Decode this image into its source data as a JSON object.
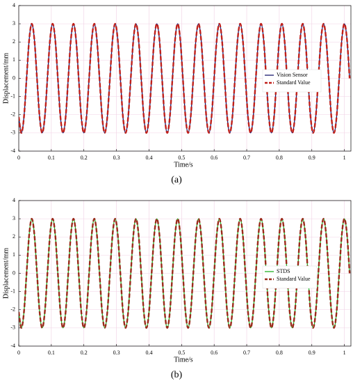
{
  "chart_data": [
    {
      "type": "line",
      "caption": "(a)",
      "xlabel": "Time/s",
      "ylabel": "Displacement/mm",
      "xlim": [
        0,
        1.02
      ],
      "xticks": [
        0,
        0.1,
        0.2,
        0.3,
        0.4,
        0.5,
        0.6,
        0.7,
        0.8,
        0.9,
        1
      ],
      "ylim": [
        -4,
        4
      ],
      "yticks": [
        -4,
        -3,
        -2,
        -1,
        0,
        1,
        2,
        3,
        4
      ],
      "grid": true,
      "x": [
        0,
        0.008,
        0.016,
        0.024,
        0.032,
        0.04,
        0.048,
        0.056,
        0.064,
        0.072,
        0.08,
        0.088,
        0.096,
        0.104,
        0.112,
        0.12,
        0.128,
        0.136,
        0.144,
        0.152,
        0.16,
        0.168,
        0.176,
        0.184,
        0.192,
        0.2,
        0.208,
        0.216,
        0.224,
        0.232,
        0.24,
        0.248,
        0.256,
        0.264,
        0.272,
        0.28,
        0.288,
        0.296,
        0.304,
        0.312,
        0.32,
        0.328,
        0.336,
        0.344,
        0.352,
        0.36,
        0.368,
        0.376,
        0.384,
        0.392,
        0.4,
        0.408,
        0.416,
        0.424,
        0.432,
        0.44,
        0.448,
        0.456,
        0.464,
        0.472,
        0.48,
        0.488,
        0.496,
        0.504,
        0.512,
        0.52,
        0.528,
        0.536,
        0.544,
        0.552,
        0.56,
        0.568,
        0.576,
        0.584,
        0.592,
        0.6,
        0.608,
        0.616,
        0.624,
        0.632,
        0.64,
        0.648,
        0.656,
        0.664,
        0.672,
        0.68,
        0.688,
        0.696,
        0.704,
        0.712,
        0.72,
        0.728,
        0.736,
        0.744,
        0.752,
        0.76,
        0.768,
        0.776,
        0.784,
        0.792,
        0.8,
        0.808,
        0.816,
        0.824,
        0.832,
        0.84,
        0.848,
        0.856,
        0.864,
        0.872,
        0.88,
        0.888,
        0.896,
        0.904,
        0.912,
        0.92,
        0.928,
        0.936,
        0.944,
        0.952,
        0.96,
        0.968,
        0.976,
        0.984,
        0.992,
        1,
        1.008,
        1.016
      ],
      "series": [
        {
          "name": "Vision Sensor",
          "color": "#1a1a6e",
          "line_style": "solid",
          "values": [
            -2.12,
            -3,
            -2.12,
            0,
            2.12,
            3,
            2.12,
            0,
            -2.12,
            -3,
            -2.12,
            0,
            2.12,
            3,
            2.12,
            0,
            -2.12,
            -3,
            -2.12,
            0,
            2.12,
            3,
            2.12,
            0,
            -2.12,
            -3,
            -2.12,
            0,
            2.12,
            3,
            2.12,
            0,
            -2.12,
            -3,
            -2.12,
            0,
            2.12,
            3,
            2.12,
            0,
            -2.12,
            -3,
            -2.12,
            0,
            2.12,
            3,
            2.12,
            0,
            -2.12,
            -3,
            -2.12,
            0,
            2.12,
            3,
            2.12,
            0,
            -2.12,
            -3,
            -2.12,
            0,
            2.12,
            3,
            2.12,
            0,
            -2.12,
            -3,
            -2.12,
            0,
            2.12,
            3,
            2.12,
            0,
            -2.12,
            -3,
            -2.12,
            0,
            2.12,
            3,
            2.12,
            0,
            -2.12,
            -3,
            -2.12,
            0,
            2.12,
            3,
            2.12,
            0,
            -2.12,
            -3,
            -2.12,
            0,
            2.12,
            3,
            2.12,
            0,
            -2.12,
            -3,
            -2.12,
            0,
            2.12,
            3,
            2.12,
            0,
            -2.12,
            -3,
            -2.12,
            0,
            2.12,
            3,
            2.12,
            0,
            -2.12,
            -3,
            -2.12,
            0,
            2.12,
            3,
            2.12,
            0,
            -2.12,
            -3,
            -2.12,
            0,
            2.12,
            3,
            2.12,
            0
          ]
        },
        {
          "name": "Standard Value",
          "color": "#c0201a",
          "line_style": "dashed",
          "values": [
            -2.12,
            -3,
            -2.12,
            0,
            2.12,
            3,
            2.12,
            0,
            -2.12,
            -3,
            -2.12,
            0,
            2.12,
            3,
            2.12,
            0,
            -2.12,
            -3,
            -2.12,
            0,
            2.12,
            3,
            2.12,
            0,
            -2.12,
            -3,
            -2.12,
            0,
            2.12,
            3,
            2.12,
            0,
            -2.12,
            -3,
            -2.12,
            0,
            2.12,
            3,
            2.12,
            0,
            -2.12,
            -3,
            -2.12,
            0,
            2.12,
            3,
            2.12,
            0,
            -2.12,
            -3,
            -2.12,
            0,
            2.12,
            3,
            2.12,
            0,
            -2.12,
            -3,
            -2.12,
            0,
            2.12,
            3,
            2.12,
            0,
            -2.12,
            -3,
            -2.12,
            0,
            2.12,
            3,
            2.12,
            0,
            -2.12,
            -3,
            -2.12,
            0,
            2.12,
            3,
            2.12,
            0,
            -2.12,
            -3,
            -2.12,
            0,
            2.12,
            3,
            2.12,
            0,
            -2.12,
            -3,
            -2.12,
            0,
            2.12,
            3,
            2.12,
            0,
            -2.12,
            -3,
            -2.12,
            0,
            2.12,
            3,
            2.12,
            0,
            -2.12,
            -3,
            -2.12,
            0,
            2.12,
            3,
            2.12,
            0,
            -2.12,
            -3,
            -2.12,
            0,
            2.12,
            3,
            2.12,
            0,
            -2.12,
            -3,
            -2.12,
            0,
            2.12,
            3,
            2.12,
            0
          ]
        }
      ]
    },
    {
      "type": "line",
      "caption": "(b)",
      "xlabel": "Time/s",
      "ylabel": "Displacement/mm",
      "xlim": [
        0,
        1.02
      ],
      "xticks": [
        0,
        0.1,
        0.2,
        0.3,
        0.4,
        0.5,
        0.6,
        0.7,
        0.8,
        0.9,
        1
      ],
      "ylim": [
        -4,
        4
      ],
      "yticks": [
        -4,
        -3,
        -2,
        -1,
        0,
        1,
        2,
        3,
        4
      ],
      "grid": true,
      "x": [
        0,
        0.008,
        0.016,
        0.024,
        0.032,
        0.04,
        0.048,
        0.056,
        0.064,
        0.072,
        0.08,
        0.088,
        0.096,
        0.104,
        0.112,
        0.12,
        0.128,
        0.136,
        0.144,
        0.152,
        0.16,
        0.168,
        0.176,
        0.184,
        0.192,
        0.2,
        0.208,
        0.216,
        0.224,
        0.232,
        0.24,
        0.248,
        0.256,
        0.264,
        0.272,
        0.28,
        0.288,
        0.296,
        0.304,
        0.312,
        0.32,
        0.328,
        0.336,
        0.344,
        0.352,
        0.36,
        0.368,
        0.376,
        0.384,
        0.392,
        0.4,
        0.408,
        0.416,
        0.424,
        0.432,
        0.44,
        0.448,
        0.456,
        0.464,
        0.472,
        0.48,
        0.488,
        0.496,
        0.504,
        0.512,
        0.52,
        0.528,
        0.536,
        0.544,
        0.552,
        0.56,
        0.568,
        0.576,
        0.584,
        0.592,
        0.6,
        0.608,
        0.616,
        0.624,
        0.632,
        0.64,
        0.648,
        0.656,
        0.664,
        0.672,
        0.68,
        0.688,
        0.696,
        0.704,
        0.712,
        0.72,
        0.728,
        0.736,
        0.744,
        0.752,
        0.76,
        0.768,
        0.776,
        0.784,
        0.792,
        0.8,
        0.808,
        0.816,
        0.824,
        0.832,
        0.84,
        0.848,
        0.856,
        0.864,
        0.872,
        0.88,
        0.888,
        0.896,
        0.904,
        0.912,
        0.92,
        0.928,
        0.936,
        0.944,
        0.952,
        0.96,
        0.968,
        0.976,
        0.984,
        0.992,
        1,
        1.008,
        1.016
      ],
      "series": [
        {
          "name": "STDS",
          "color": "#22b022",
          "line_style": "solid",
          "values": [
            -2.12,
            -3,
            -2.12,
            0,
            2.12,
            3,
            2.12,
            0,
            -2.12,
            -3,
            -2.12,
            0,
            2.12,
            3,
            2.12,
            0,
            -2.12,
            -3,
            -2.12,
            0,
            2.12,
            3,
            2.12,
            0,
            -2.12,
            -3,
            -2.12,
            0,
            2.12,
            3,
            2.12,
            0,
            -2.12,
            -3,
            -2.12,
            0,
            2.12,
            3,
            2.12,
            0,
            -2.12,
            -3,
            -2.12,
            0,
            2.12,
            3,
            2.12,
            0,
            -2.12,
            -3,
            -2.12,
            0,
            2.12,
            3,
            2.12,
            0,
            -2.12,
            -3,
            -2.12,
            0,
            2.12,
            3,
            2.12,
            0,
            -2.12,
            -3,
            -2.12,
            0,
            2.12,
            3,
            2.12,
            0,
            -2.12,
            -3,
            -2.12,
            0,
            2.12,
            3,
            2.12,
            0,
            -2.12,
            -3,
            -2.12,
            0,
            2.12,
            3,
            2.12,
            0,
            -2.12,
            -3,
            -2.12,
            0,
            2.12,
            3,
            2.12,
            0,
            -2.12,
            -3,
            -2.12,
            0,
            2.12,
            3,
            2.12,
            0,
            -2.12,
            -3,
            -2.12,
            0,
            2.12,
            3,
            2.12,
            0,
            -2.12,
            -3,
            -2.12,
            0,
            2.12,
            3,
            2.12,
            0,
            -2.12,
            -3,
            -2.12,
            0,
            2.12,
            3,
            2.12,
            0
          ]
        },
        {
          "name": "Standard Value",
          "color": "#9a2a1a",
          "line_style": "dashed",
          "values": [
            -2.12,
            -3,
            -2.12,
            0,
            2.12,
            3,
            2.12,
            0,
            -2.12,
            -3,
            -2.12,
            0,
            2.12,
            3,
            2.12,
            0,
            -2.12,
            -3,
            -2.12,
            0,
            2.12,
            3,
            2.12,
            0,
            -2.12,
            -3,
            -2.12,
            0,
            2.12,
            3,
            2.12,
            0,
            -2.12,
            -3,
            -2.12,
            0,
            2.12,
            3,
            2.12,
            0,
            -2.12,
            -3,
            -2.12,
            0,
            2.12,
            3,
            2.12,
            0,
            -2.12,
            -3,
            -2.12,
            0,
            2.12,
            3,
            2.12,
            0,
            -2.12,
            -3,
            -2.12,
            0,
            2.12,
            3,
            2.12,
            0,
            -2.12,
            -3,
            -2.12,
            0,
            2.12,
            3,
            2.12,
            0,
            -2.12,
            -3,
            -2.12,
            0,
            2.12,
            3,
            2.12,
            0,
            -2.12,
            -3,
            -2.12,
            0,
            2.12,
            3,
            2.12,
            0,
            -2.12,
            -3,
            -2.12,
            0,
            2.12,
            3,
            2.12,
            0,
            -2.12,
            -3,
            -2.12,
            0,
            2.12,
            3,
            2.12,
            0,
            -2.12,
            -3,
            -2.12,
            0,
            2.12,
            3,
            2.12,
            0,
            -2.12,
            -3,
            -2.12,
            0,
            2.12,
            3,
            2.12,
            0,
            -2.12,
            -3,
            -2.12,
            0,
            2.12,
            3,
            2.12,
            0
          ]
        }
      ]
    }
  ]
}
